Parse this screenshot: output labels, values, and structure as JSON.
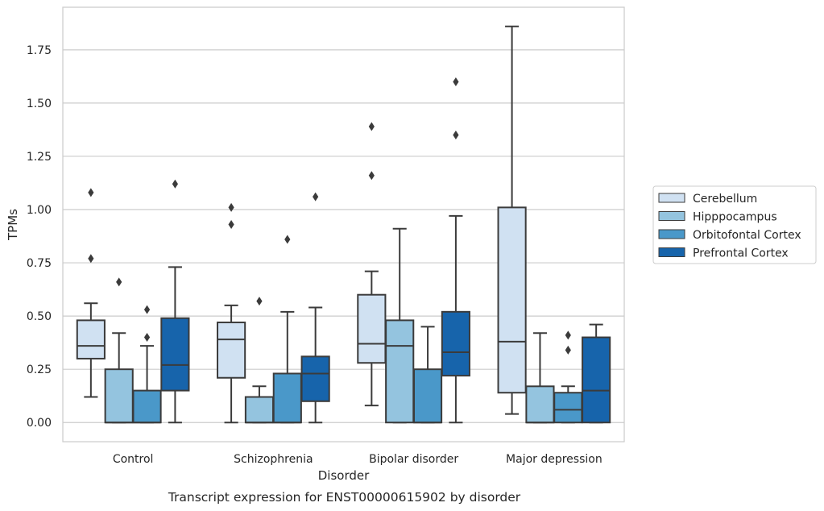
{
  "chart_data": {
    "type": "boxplot",
    "xlabel": "Disorder",
    "ylabel": "TPMs",
    "caption": "Transcript expression for ENST00000615902 by disorder",
    "ylim": [
      -0.09,
      1.95
    ],
    "yticks": [
      0.0,
      0.25,
      0.5,
      0.75,
      1.0,
      1.25,
      1.5,
      1.75
    ],
    "ytick_labels": [
      "0.00",
      "0.25",
      "0.50",
      "0.75",
      "1.00",
      "1.25",
      "1.50",
      "1.75"
    ],
    "grid": "y",
    "legend_position": "right, outside",
    "categories": [
      "Control",
      "Schizophrenia",
      "Bipolar disorder",
      "Major depression"
    ],
    "series": [
      {
        "name": "Cerebellum",
        "color": "#d0e1f2",
        "boxes": [
          {
            "whislo": 0.12,
            "q1": 0.3,
            "med": 0.36,
            "q3": 0.48,
            "whishi": 0.56,
            "fliers": [
              0.77,
              1.08
            ]
          },
          {
            "whislo": 0.0,
            "q1": 0.21,
            "med": 0.39,
            "q3": 0.47,
            "whishi": 0.55,
            "fliers": [
              0.93,
              1.01
            ]
          },
          {
            "whislo": 0.08,
            "q1": 0.28,
            "med": 0.37,
            "q3": 0.6,
            "whishi": 0.71,
            "fliers": [
              1.16,
              1.39
            ]
          },
          {
            "whislo": 0.04,
            "q1": 0.14,
            "med": 0.38,
            "q3": 1.01,
            "whishi": 1.86,
            "fliers": []
          }
        ]
      },
      {
        "name": "Hipppocampus",
        "color": "#94c4df",
        "boxes": [
          {
            "whislo": 0.0,
            "q1": 0.0,
            "med": 0.0,
            "q3": 0.25,
            "whishi": 0.42,
            "fliers": [
              0.66
            ]
          },
          {
            "whislo": 0.0,
            "q1": 0.0,
            "med": 0.0,
            "q3": 0.12,
            "whishi": 0.17,
            "fliers": [
              0.57
            ]
          },
          {
            "whislo": 0.0,
            "q1": 0.0,
            "med": 0.36,
            "q3": 0.48,
            "whishi": 0.91,
            "fliers": []
          },
          {
            "whislo": 0.0,
            "q1": 0.0,
            "med": 0.0,
            "q3": 0.17,
            "whishi": 0.42,
            "fliers": []
          }
        ]
      },
      {
        "name": "Orbitofontal Cortex",
        "color": "#4a98c9",
        "boxes": [
          {
            "whislo": 0.0,
            "q1": 0.0,
            "med": 0.0,
            "q3": 0.15,
            "whishi": 0.36,
            "fliers": [
              0.4,
              0.53
            ]
          },
          {
            "whislo": 0.0,
            "q1": 0.0,
            "med": 0.0,
            "q3": 0.23,
            "whishi": 0.52,
            "fliers": [
              0.86
            ]
          },
          {
            "whislo": 0.0,
            "q1": 0.0,
            "med": 0.0,
            "q3": 0.25,
            "whishi": 0.45,
            "fliers": []
          },
          {
            "whislo": 0.0,
            "q1": 0.0,
            "med": 0.06,
            "q3": 0.14,
            "whishi": 0.17,
            "fliers": [
              0.34,
              0.41
            ]
          }
        ]
      },
      {
        "name": "Prefrontal Cortex",
        "color": "#1764ab",
        "boxes": [
          {
            "whislo": 0.0,
            "q1": 0.15,
            "med": 0.27,
            "q3": 0.49,
            "whishi": 0.73,
            "fliers": [
              1.12
            ]
          },
          {
            "whislo": 0.0,
            "q1": 0.1,
            "med": 0.23,
            "q3": 0.31,
            "whishi": 0.54,
            "fliers": [
              1.06
            ]
          },
          {
            "whislo": 0.0,
            "q1": 0.22,
            "med": 0.33,
            "q3": 0.52,
            "whishi": 0.97,
            "fliers": [
              1.35,
              1.6
            ]
          },
          {
            "whislo": 0.0,
            "q1": 0.0,
            "med": 0.15,
            "q3": 0.4,
            "whishi": 0.46,
            "fliers": []
          }
        ]
      }
    ]
  }
}
